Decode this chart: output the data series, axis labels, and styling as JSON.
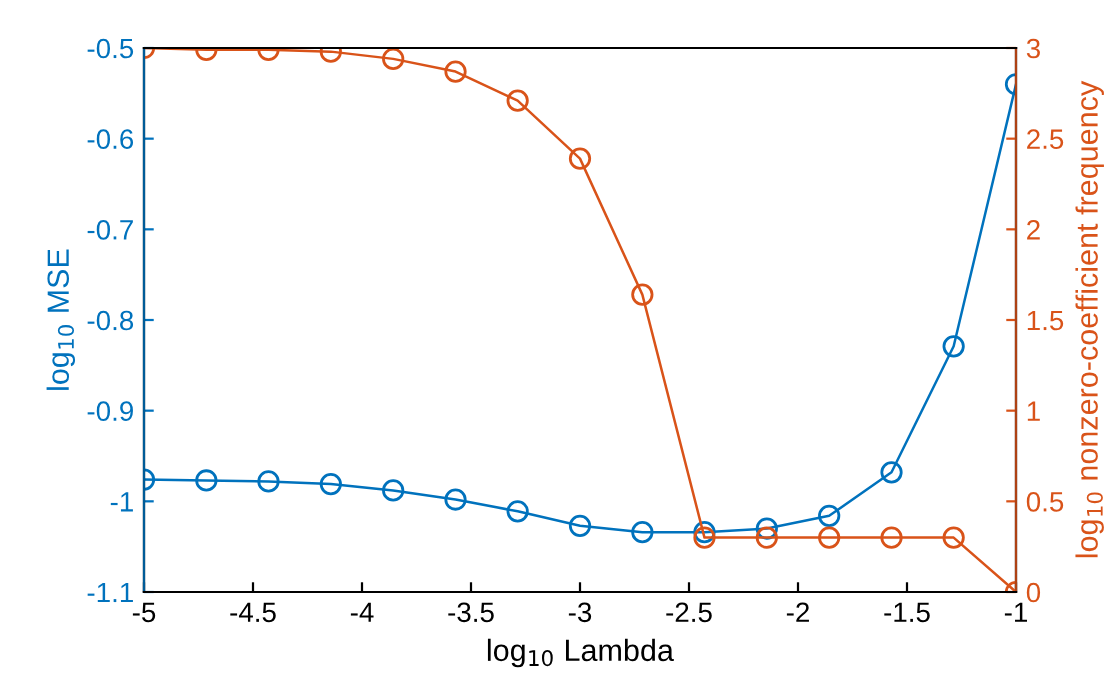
{
  "chart_data": {
    "type": "line",
    "xlabel": "log$_{10}$ Lambda",
    "ylabel": "log$_{10}$ MSE",
    "y2label": "log$_{10}$ nonzero-coefficient frequency",
    "x": [
      -5,
      -4.714,
      -4.429,
      -4.143,
      -3.857,
      -3.571,
      -3.286,
      -3,
      -2.714,
      -2.429,
      -2.143,
      -1.857,
      -1.571,
      -1.286,
      -1
    ],
    "series": [
      {
        "color": "#0072bd",
        "values": [
          -0.976,
          -0.977,
          -0.978,
          -0.981,
          -0.988,
          -0.998,
          -1.011,
          -1.027,
          -1.034,
          -1.034,
          -1.03,
          -1.016,
          -0.968,
          -0.829,
          -0.54
        ]
      },
      {
        "color": "#d95319",
        "axis": "y2",
        "values": [
          3.0,
          2.99,
          2.99,
          2.98,
          2.94,
          2.87,
          2.71,
          2.39,
          1.64,
          0.3,
          0.3,
          0.3,
          0.3,
          0.3,
          0
        ]
      }
    ],
    "xlim": [
      -5,
      -1
    ],
    "xticks": [
      -5,
      -4.5,
      -4,
      -3.5,
      -3,
      -2.5,
      -2,
      -1.5,
      -1
    ],
    "ylim": [
      -1.1,
      -0.5
    ],
    "yticks": [
      -1.1,
      -1,
      -0.9,
      -0.8,
      -0.7,
      -0.6,
      -0.5
    ],
    "y2lim": [
      0,
      3
    ],
    "y2ticks": [
      0,
      0.5,
      1,
      1.5,
      2,
      2.5,
      3
    ],
    "marker": "circle",
    "line_style": "solid",
    "grid": false,
    "legend": false
  }
}
